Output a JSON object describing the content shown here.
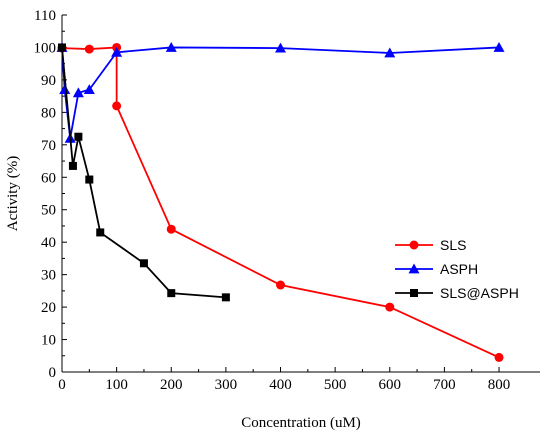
{
  "chart_data": {
    "type": "line",
    "title": "",
    "xlabel": "Concentration (uM)",
    "ylabel": "Activity (%)",
    "xlim": [
      0,
      875
    ],
    "ylim": [
      0,
      110
    ],
    "x_ticks": [
      0,
      100,
      200,
      300,
      400,
      500,
      600,
      700,
      800
    ],
    "y_ticks": [
      0,
      10,
      20,
      30,
      40,
      50,
      60,
      70,
      80,
      90,
      100,
      110
    ],
    "grid": false,
    "legend_position": "right",
    "series": [
      {
        "name": "SLS",
        "color": "#ff0000",
        "marker": "circle",
        "x": [
          0,
          50,
          100,
          100,
          200,
          400,
          600,
          800
        ],
        "y": [
          99.8,
          99.5,
          100,
          82,
          44,
          26.8,
          20,
          4.5
        ]
      },
      {
        "name": "ASPH",
        "color": "#0000ff",
        "marker": "triangle",
        "x": [
          0,
          5,
          15,
          30,
          50,
          100,
          200,
          400,
          600,
          800
        ],
        "y": [
          100,
          87,
          72,
          86,
          87,
          98.5,
          100,
          99.8,
          98.3,
          100
        ]
      },
      {
        "name": "SLS@ASPH",
        "color": "#000000",
        "marker": "square",
        "x": [
          0,
          20,
          30,
          50,
          70,
          150,
          200,
          300
        ],
        "y": [
          100,
          63.5,
          72.5,
          59.3,
          43,
          33.5,
          24.3,
          23
        ]
      }
    ]
  }
}
